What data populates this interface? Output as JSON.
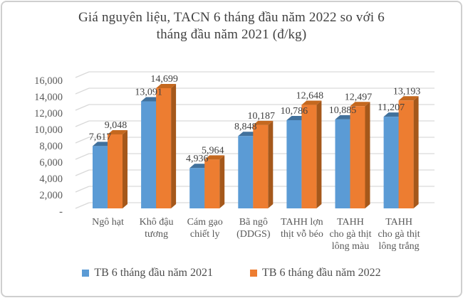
{
  "chart_data": {
    "type": "bar",
    "variant": "3d-clustered-column",
    "title": "Giá nguyên liệu, TACN 6 tháng đầu năm 2022 so với 6 tháng đầu năm 2021 (đ/kg)",
    "title_lines": [
      "Giá nguyên liệu, TACN 6 tháng đầu năm 2022 so với 6",
      "tháng đầu năm 2021 (đ/kg)"
    ],
    "categories": [
      "Ngô hạt",
      "Khô đậu tương",
      "Cám gạo chiết ly",
      "Bã ngô (DDGS)",
      "TAHH lợn thịt vỗ béo",
      "TAHH cho gà thịt lông màu",
      "TAHH cho gà thịt lông trắng"
    ],
    "category_lines": [
      [
        "Ngô hạt"
      ],
      [
        "Khô đậu",
        "tương"
      ],
      [
        "Cám gạo",
        "chiết ly"
      ],
      [
        "Bã ngô",
        "(DDGS)"
      ],
      [
        "TAHH lợn",
        "thịt vỗ béo"
      ],
      [
        "TAHH",
        "cho gà thịt",
        "lông màu"
      ],
      [
        "TAHH",
        "cho gà thịt",
        "lông trắng"
      ]
    ],
    "series": [
      {
        "name": "TB 6 tháng đầu năm 2021",
        "color": "#5B9BD5",
        "color_top": "#41719C",
        "color_side": "#39648B",
        "values": [
          7617,
          13091,
          4936,
          8848,
          10786,
          10885,
          11207
        ],
        "value_labels": [
          "7,617",
          "13,091",
          "4,936",
          "8,848",
          "10,786",
          "10,885",
          "11,207"
        ]
      },
      {
        "name": "TB 6 tháng đầu năm 2022",
        "color": "#ED7D31",
        "color_top": "#C4681F",
        "color_side": "#A5581B",
        "values": [
          9048,
          14699,
          5964,
          10187,
          12648,
          12497,
          13193
        ],
        "value_labels": [
          "9,048",
          "14,699",
          "5,964",
          "10,187",
          "12,648",
          "12,497",
          "13,193"
        ]
      }
    ],
    "ylim": [
      0,
      16000
    ],
    "ytick_step": 2000,
    "ytick_labels": [
      "-",
      "2,000",
      "4,000",
      "6,000",
      "8,000",
      "10,000",
      "12,000",
      "14,000",
      "16,000"
    ],
    "grid": true,
    "legend_position": "bottom",
    "colors": {
      "grid": "#D9D9D9",
      "axis_text": "#595959",
      "value_text": "#404040",
      "title_text": "#404040",
      "frame_border": "#CFCFCF",
      "background": "#FFFFFF"
    }
  }
}
